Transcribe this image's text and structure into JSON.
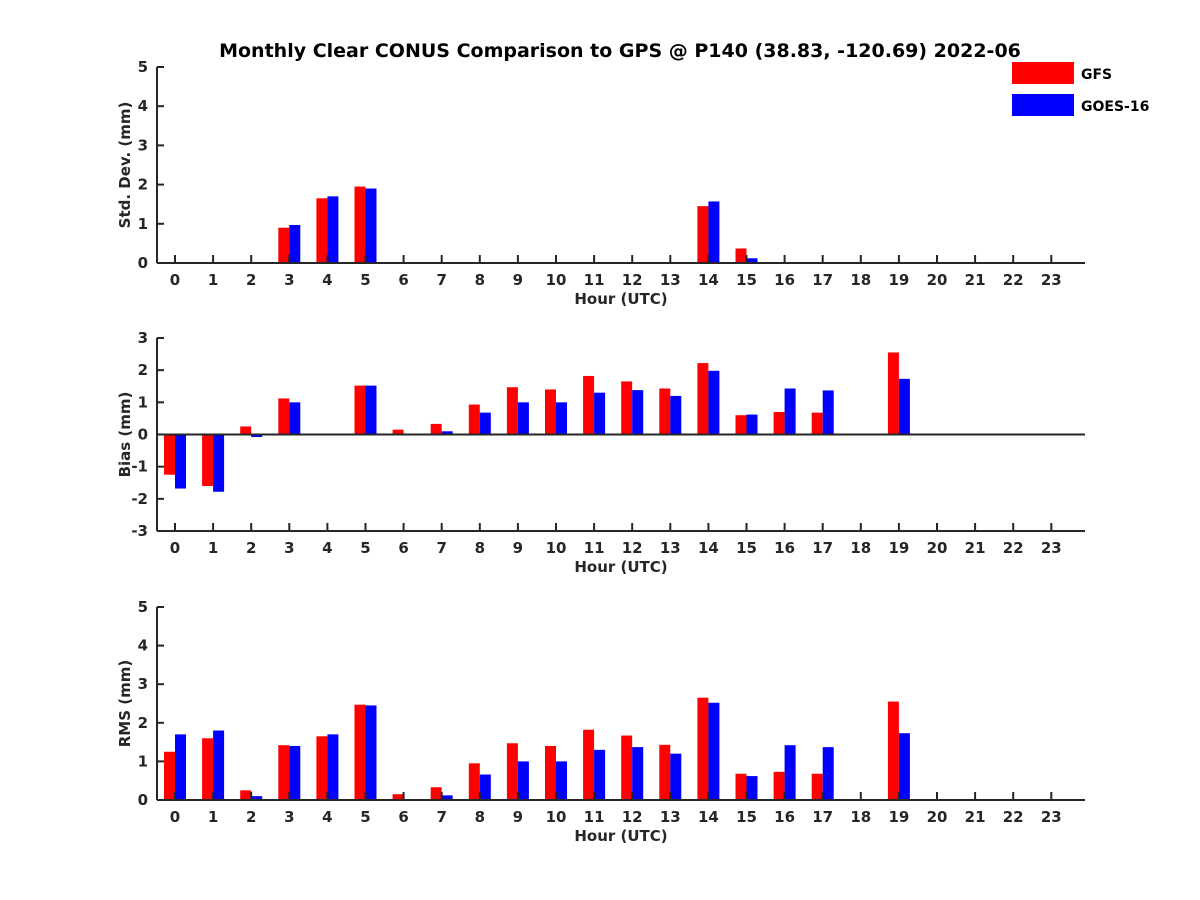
{
  "chart_data": [
    {
      "type": "bar",
      "title": "Monthly Clear CONUS Comparison to GPS @ P140 (38.83, -120.69) 2022-06",
      "xlabel": "Hour (UTC)",
      "ylabel": "Std. Dev. (mm)",
      "ylim": [
        0,
        5
      ],
      "yticks": [
        "0",
        "1",
        "2",
        "3",
        "4",
        "5"
      ],
      "categories": [
        "0",
        "1",
        "2",
        "3",
        "4",
        "5",
        "6",
        "7",
        "8",
        "9",
        "10",
        "11",
        "12",
        "13",
        "14",
        "15",
        "16",
        "17",
        "18",
        "19",
        "20",
        "21",
        "22",
        "23"
      ],
      "series": [
        {
          "name": "GFS",
          "color": "#ff0000",
          "values": [
            0,
            0,
            0,
            0.9,
            1.65,
            1.95,
            0,
            0,
            0,
            0,
            0,
            0,
            0,
            0,
            1.45,
            0.37,
            0,
            0,
            0,
            0,
            0,
            0,
            0,
            0
          ]
        },
        {
          "name": "GOES-16",
          "color": "#0000ff",
          "values": [
            0,
            0,
            0,
            0.97,
            1.7,
            1.9,
            0,
            0,
            0,
            0,
            0,
            0,
            0,
            0,
            1.57,
            0.12,
            0,
            0,
            0,
            0,
            0,
            0,
            0,
            0
          ]
        }
      ]
    },
    {
      "type": "bar",
      "title": "",
      "xlabel": "Hour (UTC)",
      "ylabel": "Bias (mm)",
      "ylim": [
        -3,
        3
      ],
      "yticks": [
        "-3",
        "-2",
        "-1",
        "0",
        "1",
        "2",
        "3"
      ],
      "categories": [
        "0",
        "1",
        "2",
        "3",
        "4",
        "5",
        "6",
        "7",
        "8",
        "9",
        "10",
        "11",
        "12",
        "13",
        "14",
        "15",
        "16",
        "17",
        "18",
        "19",
        "20",
        "21",
        "22",
        "23"
      ],
      "series": [
        {
          "name": "GFS",
          "color": "#ff0000",
          "values": [
            -1.25,
            -1.6,
            0.25,
            1.12,
            0,
            1.52,
            0.15,
            0.33,
            0.93,
            1.47,
            1.4,
            1.82,
            1.65,
            1.43,
            2.22,
            0.6,
            0.7,
            0.68,
            0,
            2.55,
            0,
            0,
            0,
            0
          ]
        },
        {
          "name": "GOES-16",
          "color": "#0000ff",
          "values": [
            -1.68,
            -1.78,
            -0.08,
            1.0,
            0.03,
            1.52,
            0,
            0.1,
            0.68,
            1.0,
            1.0,
            1.3,
            1.38,
            1.2,
            1.98,
            0.62,
            1.43,
            1.37,
            0,
            1.73,
            0,
            0,
            0,
            0
          ]
        }
      ]
    },
    {
      "type": "bar",
      "title": "",
      "xlabel": "Hour (UTC)",
      "ylabel": "RMS (mm)",
      "ylim": [
        0,
        5
      ],
      "yticks": [
        "0",
        "1",
        "2",
        "3",
        "4",
        "5"
      ],
      "categories": [
        "0",
        "1",
        "2",
        "3",
        "4",
        "5",
        "6",
        "7",
        "8",
        "9",
        "10",
        "11",
        "12",
        "13",
        "14",
        "15",
        "16",
        "17",
        "18",
        "19",
        "20",
        "21",
        "22",
        "23"
      ],
      "series": [
        {
          "name": "GFS",
          "color": "#ff0000",
          "values": [
            1.25,
            1.6,
            0.25,
            1.42,
            1.65,
            2.47,
            0.15,
            0.33,
            0.95,
            1.47,
            1.4,
            1.82,
            1.67,
            1.43,
            2.65,
            0.68,
            0.73,
            0.68,
            0,
            2.55,
            0,
            0,
            0,
            0
          ]
        },
        {
          "name": "GOES-16",
          "color": "#0000ff",
          "values": [
            1.7,
            1.8,
            0.1,
            1.4,
            1.7,
            2.45,
            0,
            0.12,
            0.66,
            1.0,
            1.0,
            1.3,
            1.37,
            1.2,
            2.52,
            0.62,
            1.42,
            1.37,
            0,
            1.73,
            0,
            0,
            0,
            0
          ]
        }
      ]
    }
  ],
  "legend": [
    {
      "label": "GFS",
      "color": "#ff0000"
    },
    {
      "label": "GOES-16",
      "color": "#0000ff"
    }
  ]
}
